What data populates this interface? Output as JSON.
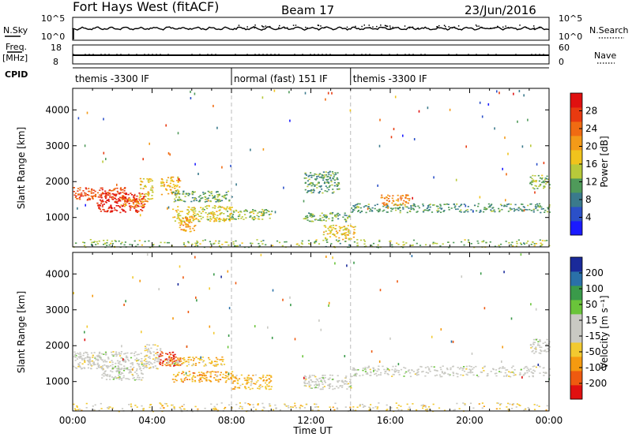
{
  "header": {
    "station": "Fort Hays West (fitACF)",
    "beam": "Beam 17",
    "date": "23/Jun/2016"
  },
  "top_panels": {
    "nsky_label": "N.Sky",
    "nsky_ticks": [
      "10^5",
      "10^0"
    ],
    "nsearch_label": "N.Search",
    "nsearch_ticks": [
      "10^5",
      "10^0"
    ],
    "freq_label": "Freq.",
    "freq_unit": "[MHz]",
    "freq_ticks": [
      "18",
      "8"
    ],
    "nave_label": "Nave",
    "nave_ticks": [
      "60",
      "0"
    ],
    "cpid_label": "CPID",
    "cpid_segments": [
      {
        "label": "themis -3300 IF",
        "start_h": 0,
        "end_h": 8
      },
      {
        "label": "normal (fast) 151 IF",
        "start_h": 8,
        "end_h": 14
      },
      {
        "label": "themis -3300 IF",
        "start_h": 14,
        "end_h": 24
      }
    ]
  },
  "chart_data": [
    {
      "type": "heatmap",
      "name": "power-panel",
      "ylabel": "Slant Range [km]",
      "ylim": [
        180,
        4600
      ],
      "yticks": [
        "1000",
        "2000",
        "3000",
        "4000"
      ],
      "ytick_values": [
        1000,
        2000,
        3000,
        4000
      ],
      "xlim": [
        0,
        24
      ],
      "colorbar": {
        "label": "Power [dB]",
        "ticks": [
          "4",
          "8",
          "12",
          "16",
          "20",
          "24",
          "28"
        ],
        "colors": [
          "#1a1aff",
          "#2b50c8",
          "#3a7a8c",
          "#4f9a5a",
          "#b8c93a",
          "#f0c31c",
          "#f39a18",
          "#f06b12",
          "#e83a10",
          "#e01010"
        ]
      },
      "regions": [
        {
          "t0": 0.0,
          "t1": 2.8,
          "r0": 1500,
          "r1": 1850,
          "level": 0.85
        },
        {
          "t0": 1.2,
          "t1": 3.6,
          "r0": 1150,
          "r1": 1700,
          "level": 0.95
        },
        {
          "t0": 2.4,
          "t1": 3.8,
          "r0": 1300,
          "r1": 1550,
          "level": 0.7
        },
        {
          "t0": 3.3,
          "t1": 4.0,
          "r0": 1500,
          "r1": 2100,
          "level": 0.55
        },
        {
          "t0": 4.4,
          "t1": 5.4,
          "r0": 1650,
          "r1": 2150,
          "level": 0.6
        },
        {
          "t0": 5.0,
          "t1": 8.0,
          "r0": 1450,
          "r1": 1750,
          "level": 0.35
        },
        {
          "t0": 5.0,
          "t1": 8.0,
          "r0": 900,
          "r1": 1350,
          "level": 0.5
        },
        {
          "t0": 5.3,
          "t1": 6.2,
          "r0": 620,
          "r1": 1050,
          "level": 0.65
        },
        {
          "t0": 8.0,
          "t1": 10.0,
          "r0": 950,
          "r1": 1250,
          "level": 0.4
        },
        {
          "t0": 11.6,
          "t1": 14.0,
          "r0": 900,
          "r1": 1150,
          "level": 0.35
        },
        {
          "t0": 11.6,
          "t1": 13.4,
          "r0": 1700,
          "r1": 2300,
          "level": 0.3
        },
        {
          "t0": 12.6,
          "t1": 14.2,
          "r0": 400,
          "r1": 800,
          "level": 0.55
        },
        {
          "t0": 14.0,
          "t1": 24.0,
          "r0": 1150,
          "r1": 1400,
          "level": 0.3
        },
        {
          "t0": 15.5,
          "t1": 17.0,
          "r0": 1350,
          "r1": 1650,
          "level": 0.7
        },
        {
          "t0": 23.0,
          "t1": 24.0,
          "r0": 1800,
          "r1": 2200,
          "level": 0.4
        },
        {
          "t0": 0.0,
          "t1": 24.0,
          "r0": 180,
          "r1": 400,
          "level": 0.4
        }
      ]
    },
    {
      "type": "heatmap",
      "name": "velocity-panel",
      "ylabel": "Slant Range [km]",
      "ylim": [
        180,
        4600
      ],
      "yticks": [
        "1000",
        "2000",
        "3000",
        "4000"
      ],
      "ytick_values": [
        1000,
        2000,
        3000,
        4000
      ],
      "xlim": [
        0,
        24
      ],
      "xticks": [
        "00:00",
        "04:00",
        "08:00",
        "12:00",
        "16:00",
        "20:00",
        "00:00"
      ],
      "xlabel": "Time UT",
      "colorbar": {
        "label": "Velocity [m s⁻¹]",
        "ticks": [
          "-200",
          "-100",
          "-50",
          "-15",
          "15",
          "50",
          "100",
          "200"
        ],
        "colors": [
          "#e01010",
          "#ee5a10",
          "#f59a10",
          "#f2c930",
          "#c9c9c3",
          "#c9c9c3",
          "#6ac43a",
          "#3a9a4a",
          "#2a70a8",
          "#1a2a9a"
        ]
      },
      "regions": [
        {
          "t0": 0.0,
          "t1": 3.5,
          "r0": 1350,
          "r1": 1850,
          "level": 0.5
        },
        {
          "t0": 1.4,
          "t1": 3.5,
          "r0": 1050,
          "r1": 1400,
          "level": 0.5
        },
        {
          "t0": 3.5,
          "t1": 4.4,
          "r0": 1350,
          "r1": 2050,
          "level": 0.45
        },
        {
          "t0": 4.2,
          "t1": 5.4,
          "r0": 1450,
          "r1": 1850,
          "level": 0.05
        },
        {
          "t0": 4.6,
          "t1": 7.6,
          "r0": 1450,
          "r1": 1700,
          "level": 0.3
        },
        {
          "t0": 5.0,
          "t1": 8.0,
          "r0": 1000,
          "r1": 1300,
          "level": 0.25
        },
        {
          "t0": 8.0,
          "t1": 10.0,
          "r0": 800,
          "r1": 1200,
          "level": 0.3
        },
        {
          "t0": 11.6,
          "t1": 14.0,
          "r0": 800,
          "r1": 1200,
          "level": 0.5
        },
        {
          "t0": 14.0,
          "t1": 24.0,
          "r0": 1150,
          "r1": 1450,
          "level": 0.5
        },
        {
          "t0": 0.0,
          "t1": 24.0,
          "r0": 180,
          "r1": 420,
          "level": 0.38
        },
        {
          "t0": 23.0,
          "t1": 24.0,
          "r0": 1800,
          "r1": 2200,
          "level": 0.5
        }
      ]
    }
  ]
}
